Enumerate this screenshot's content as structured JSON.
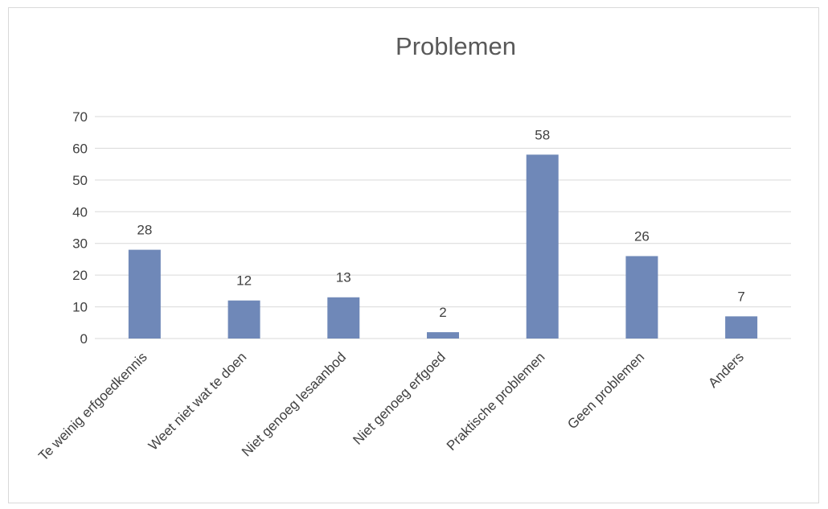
{
  "chart_data": {
    "type": "bar",
    "title": "Problemen",
    "categories": [
      "Te weinig erfgoedkennis",
      "Weet niet wat te doen",
      "Niet genoeg lesaanbod",
      "Niet genoeg erfgoed",
      "Praktische problemen",
      "Geen problemen",
      "Anders"
    ],
    "values": [
      28,
      12,
      13,
      2,
      58,
      26,
      7
    ],
    "data_labels": [
      "28",
      "12",
      "13",
      "2",
      "58",
      "26",
      "7"
    ],
    "y_ticks": [
      "0",
      "10",
      "20",
      "30",
      "40",
      "50",
      "60",
      "70"
    ],
    "ylim": [
      0,
      70
    ],
    "xlabel": "",
    "ylabel": "",
    "grid": true,
    "legend": "none",
    "bar_color": "#6f88b8",
    "grid_color": "#d9d9d9"
  }
}
